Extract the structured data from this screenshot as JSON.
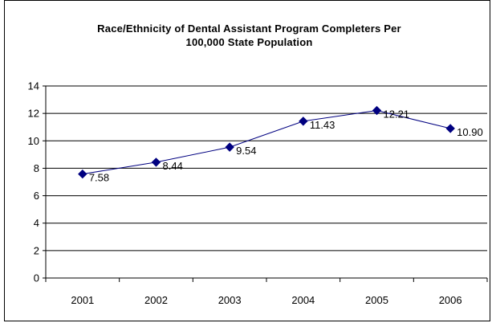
{
  "chart_data": {
    "type": "line",
    "title_lines": [
      "Race/Ethnicity of Dental Assistant Program Completers Per",
      "100,000 State Population"
    ],
    "categories": [
      "2001",
      "2002",
      "2003",
      "2004",
      "2005",
      "2006"
    ],
    "values": [
      7.58,
      8.44,
      9.54,
      11.43,
      12.21,
      10.9
    ],
    "data_labels": [
      "7.58",
      "8.44",
      "9.54",
      "11.43",
      "12.21",
      "10.90"
    ],
    "ylim": [
      0,
      14
    ],
    "yticks": [
      "0",
      "2",
      "4",
      "6",
      "8",
      "10",
      "12",
      "14"
    ],
    "grid": "horizontal",
    "legend": "none",
    "line_color": "#000080",
    "marker": "diamond"
  }
}
